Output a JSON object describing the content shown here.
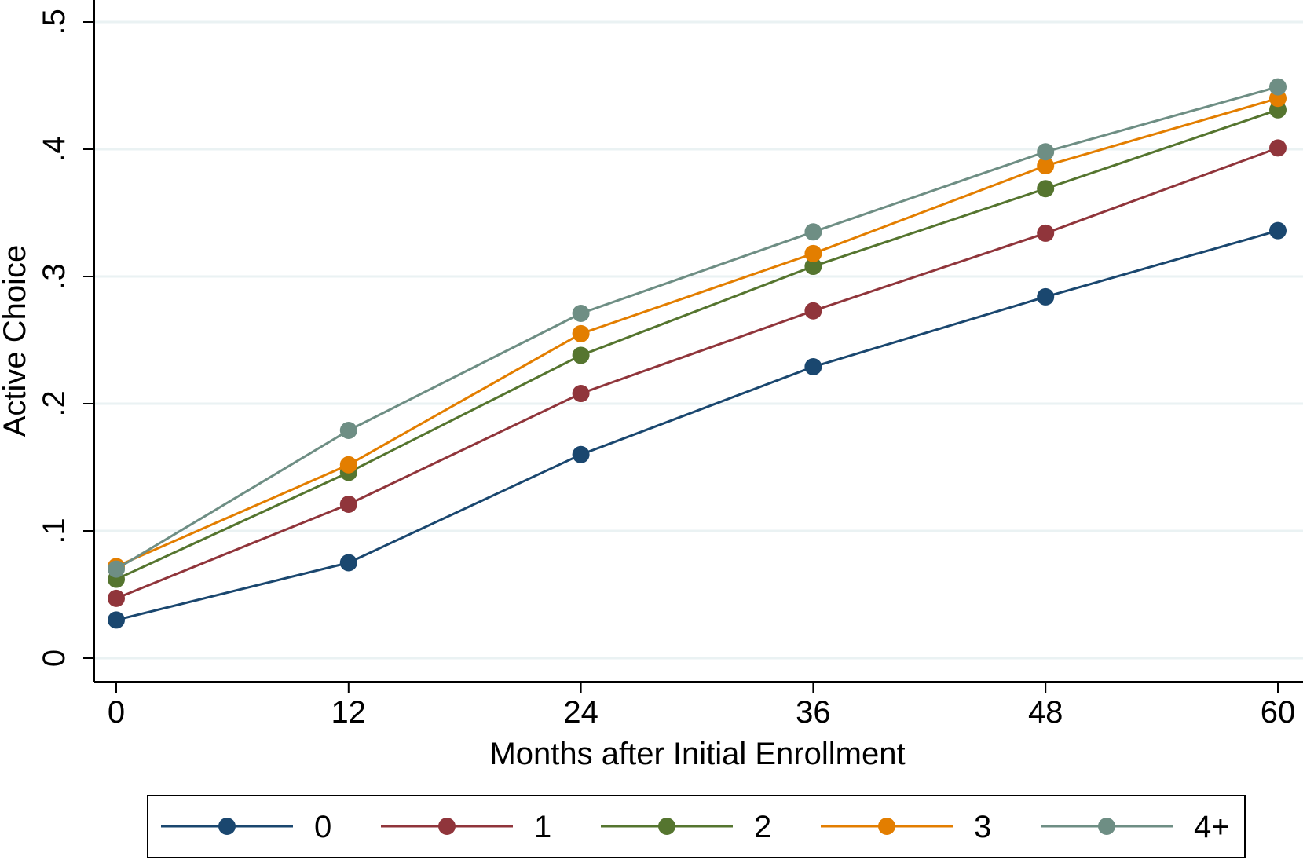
{
  "chart_data": {
    "type": "line",
    "title": "",
    "xlabel": "Months after Initial Enrollment",
    "ylabel": "Active Choice",
    "x": [
      0,
      12,
      24,
      36,
      48,
      60
    ],
    "x_tick_labels": [
      "0",
      "12",
      "24",
      "36",
      "48",
      "60"
    ],
    "y_ticks": [
      0,
      0.1,
      0.2,
      0.3,
      0.4,
      0.5
    ],
    "y_tick_labels": [
      "0",
      ".1",
      ".2",
      ".3",
      ".4",
      ".5"
    ],
    "xlim": [
      0,
      60
    ],
    "ylim": [
      0,
      0.5
    ],
    "grid": true,
    "legend_position": "bottom",
    "series": [
      {
        "name": "0",
        "color": "#1a476f",
        "values": [
          0.03,
          0.075,
          0.16,
          0.229,
          0.284,
          0.336
        ]
      },
      {
        "name": "1",
        "color": "#90353b",
        "values": [
          0.047,
          0.121,
          0.208,
          0.273,
          0.334,
          0.401
        ]
      },
      {
        "name": "2",
        "color": "#55752f",
        "values": [
          0.062,
          0.146,
          0.238,
          0.308,
          0.369,
          0.431
        ]
      },
      {
        "name": "3",
        "color": "#e37e00",
        "values": [
          0.072,
          0.152,
          0.255,
          0.318,
          0.387,
          0.44
        ]
      },
      {
        "name": "4+",
        "color": "#6e8e84",
        "values": [
          0.07,
          0.179,
          0.271,
          0.335,
          0.398,
          0.449
        ]
      }
    ],
    "grid_color": "#eaf2f3",
    "axis_color": "#000000"
  }
}
